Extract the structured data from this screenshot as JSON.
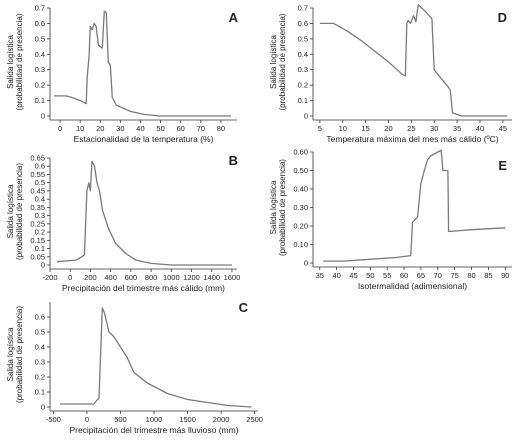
{
  "chart_data": [
    {
      "type": "line",
      "panel_label": "A",
      "xlabel": "Estacionalidad de la temperatura (%)",
      "ylabel_line1": "Salida logística",
      "ylabel_line2": "(probabilidad de presencia)",
      "xlim": [
        -5,
        88
      ],
      "ylim": [
        0,
        0.7
      ],
      "xticks": [
        0,
        10,
        20,
        30,
        40,
        50,
        60,
        70,
        80
      ],
      "xtick_labels": [
        "0",
        "10",
        "20",
        "30",
        "40",
        "50",
        "60",
        "70",
        "80"
      ],
      "yticks": [
        0,
        0.1,
        0.2,
        0.3,
        0.4,
        0.5,
        0.6,
        0.7
      ],
      "ytick_labels": [
        "0",
        "0.1",
        "0.2",
        "0.3",
        "0.4",
        "0.5",
        "0.6",
        "0.7"
      ],
      "x": [
        -3,
        3,
        6,
        10,
        13,
        13.5,
        14.5,
        15,
        16,
        17,
        18,
        19,
        20,
        21,
        22,
        23,
        24,
        25,
        26,
        28,
        35,
        42,
        50,
        85
      ],
      "y": [
        0.13,
        0.13,
        0.12,
        0.1,
        0.08,
        0.25,
        0.4,
        0.58,
        0.56,
        0.6,
        0.58,
        0.46,
        0.45,
        0.44,
        0.68,
        0.67,
        0.35,
        0.33,
        0.12,
        0.07,
        0.03,
        0.01,
        0.0,
        0.0
      ]
    },
    {
      "type": "line",
      "panel_label": "B",
      "xlabel": "Precipitación del trimestre más cálido (mm)",
      "ylabel_line1": "Salida logística",
      "ylabel_line2": "(probabilidad de presencia)",
      "xlim": [
        -200,
        1650
      ],
      "ylim": [
        0,
        0.65
      ],
      "xticks": [
        -200,
        0,
        200,
        400,
        600,
        800,
        1000,
        1200,
        1400,
        1600
      ],
      "xtick_labels": [
        "-200",
        "0",
        "200",
        "400",
        "600",
        "800",
        "1000",
        "1200",
        "1400",
        "1600"
      ],
      "yticks": [
        0,
        0.05,
        0.1,
        0.15,
        0.2,
        0.25,
        0.3,
        0.35,
        0.4,
        0.45,
        0.5,
        0.55,
        0.6,
        0.65
      ],
      "ytick_labels": [
        "0",
        "0.05",
        "0.1",
        "0.15",
        "0.2",
        "0.25",
        "0.3",
        "0.35",
        "0.4",
        "0.45",
        "0.5",
        "0.55",
        "0.6",
        "0.65"
      ],
      "x": [
        -130,
        60,
        140,
        165,
        185,
        200,
        215,
        240,
        265,
        290,
        320,
        380,
        450,
        550,
        650,
        800,
        1000,
        1600
      ],
      "y": [
        0.02,
        0.03,
        0.06,
        0.45,
        0.5,
        0.45,
        0.63,
        0.6,
        0.5,
        0.45,
        0.33,
        0.22,
        0.13,
        0.07,
        0.03,
        0.01,
        0.0,
        0.0
      ]
    },
    {
      "type": "line",
      "panel_label": "C",
      "xlabel": "Precipitación del trimestre más lluvioso (mm)",
      "ylabel_line1": "Salida logística",
      "ylabel_line2": "(probabilidad de presencia)",
      "xlim": [
        -550,
        2550
      ],
      "ylim": [
        0,
        0.7
      ],
      "xticks": [
        -500,
        0,
        500,
        1000,
        1500,
        2000,
        2500
      ],
      "xtick_labels": [
        "-500",
        "0",
        "500",
        "1000",
        "1500",
        "2000",
        "2500"
      ],
      "yticks": [
        0,
        0.1,
        0.2,
        0.3,
        0.4,
        0.5,
        0.6
      ],
      "ytick_labels": [
        "0",
        "0.1",
        "0.2",
        "0.3",
        "0.4",
        "0.5",
        "0.6"
      ],
      "x": [
        -400,
        100,
        180,
        230,
        260,
        330,
        400,
        500,
        600,
        700,
        900,
        1200,
        1500,
        1800,
        2100,
        2450
      ],
      "y": [
        0.02,
        0.02,
        0.06,
        0.66,
        0.63,
        0.5,
        0.47,
        0.4,
        0.33,
        0.23,
        0.16,
        0.09,
        0.05,
        0.03,
        0.01,
        0.0
      ]
    },
    {
      "type": "line",
      "panel_label": "D",
      "xlabel": "Temperatura máxima del mes más cálido (ºC)",
      "ylabel_line1": "Salida logística",
      "ylabel_line2": "(probabilidad de presencia)",
      "xlim": [
        3.5,
        47
      ],
      "ylim": [
        0,
        0.7
      ],
      "xticks": [
        5,
        10,
        15,
        20,
        25,
        30,
        35,
        40,
        45
      ],
      "xtick_labels": [
        "5",
        "10",
        "15",
        "20",
        "25",
        "30",
        "35",
        "40",
        "45"
      ],
      "yticks": [
        0,
        0.1,
        0.2,
        0.3,
        0.4,
        0.5,
        0.6,
        0.7
      ],
      "ytick_labels": [
        "0",
        "0.1",
        "0.2",
        "0.3",
        "0.4",
        "0.5",
        "0.6",
        "0.7"
      ],
      "x": [
        5,
        8,
        11,
        14,
        17,
        20,
        23,
        23.7,
        24,
        24.3,
        24.8,
        25.5,
        26,
        26.5,
        28,
        29.5,
        30,
        30.5,
        33,
        33.5,
        34,
        36,
        40,
        46
      ],
      "y": [
        0.6,
        0.6,
        0.55,
        0.49,
        0.42,
        0.35,
        0.27,
        0.26,
        0.6,
        0.62,
        0.6,
        0.65,
        0.61,
        0.72,
        0.68,
        0.63,
        0.3,
        0.28,
        0.19,
        0.17,
        0.02,
        0.0,
        0.0,
        0.0
      ]
    },
    {
      "type": "line",
      "panel_label": "E",
      "xlabel": "Isotermalidad (adimensional)",
      "ylabel_line1": "Salida logística",
      "ylabel_line2": "(probabilidad de presencia)",
      "xlim": [
        33,
        92
      ],
      "ylim": [
        0,
        0.6
      ],
      "xticks": [
        35,
        40,
        45,
        50,
        55,
        60,
        65,
        70,
        75,
        80,
        85,
        90
      ],
      "xtick_labels": [
        "35",
        "40",
        "45",
        "50",
        "55",
        "60",
        "65",
        "70",
        "75",
        "80",
        "85",
        "90"
      ],
      "yticks": [
        0,
        0.1,
        0.2,
        0.3,
        0.4,
        0.5,
        0.6
      ],
      "ytick_labels": [
        "0",
        "0.10",
        "0.20",
        "0.30",
        "0.40",
        "0.50",
        "0.60"
      ],
      "x": [
        36,
        42,
        50,
        58,
        62,
        62.5,
        64,
        65,
        66,
        67,
        68,
        70,
        71,
        71.5,
        73,
        73.2,
        80,
        90
      ],
      "y": [
        0.01,
        0.01,
        0.02,
        0.03,
        0.04,
        0.22,
        0.25,
        0.43,
        0.5,
        0.56,
        0.58,
        0.6,
        0.61,
        0.5,
        0.5,
        0.17,
        0.18,
        0.19
      ]
    }
  ]
}
